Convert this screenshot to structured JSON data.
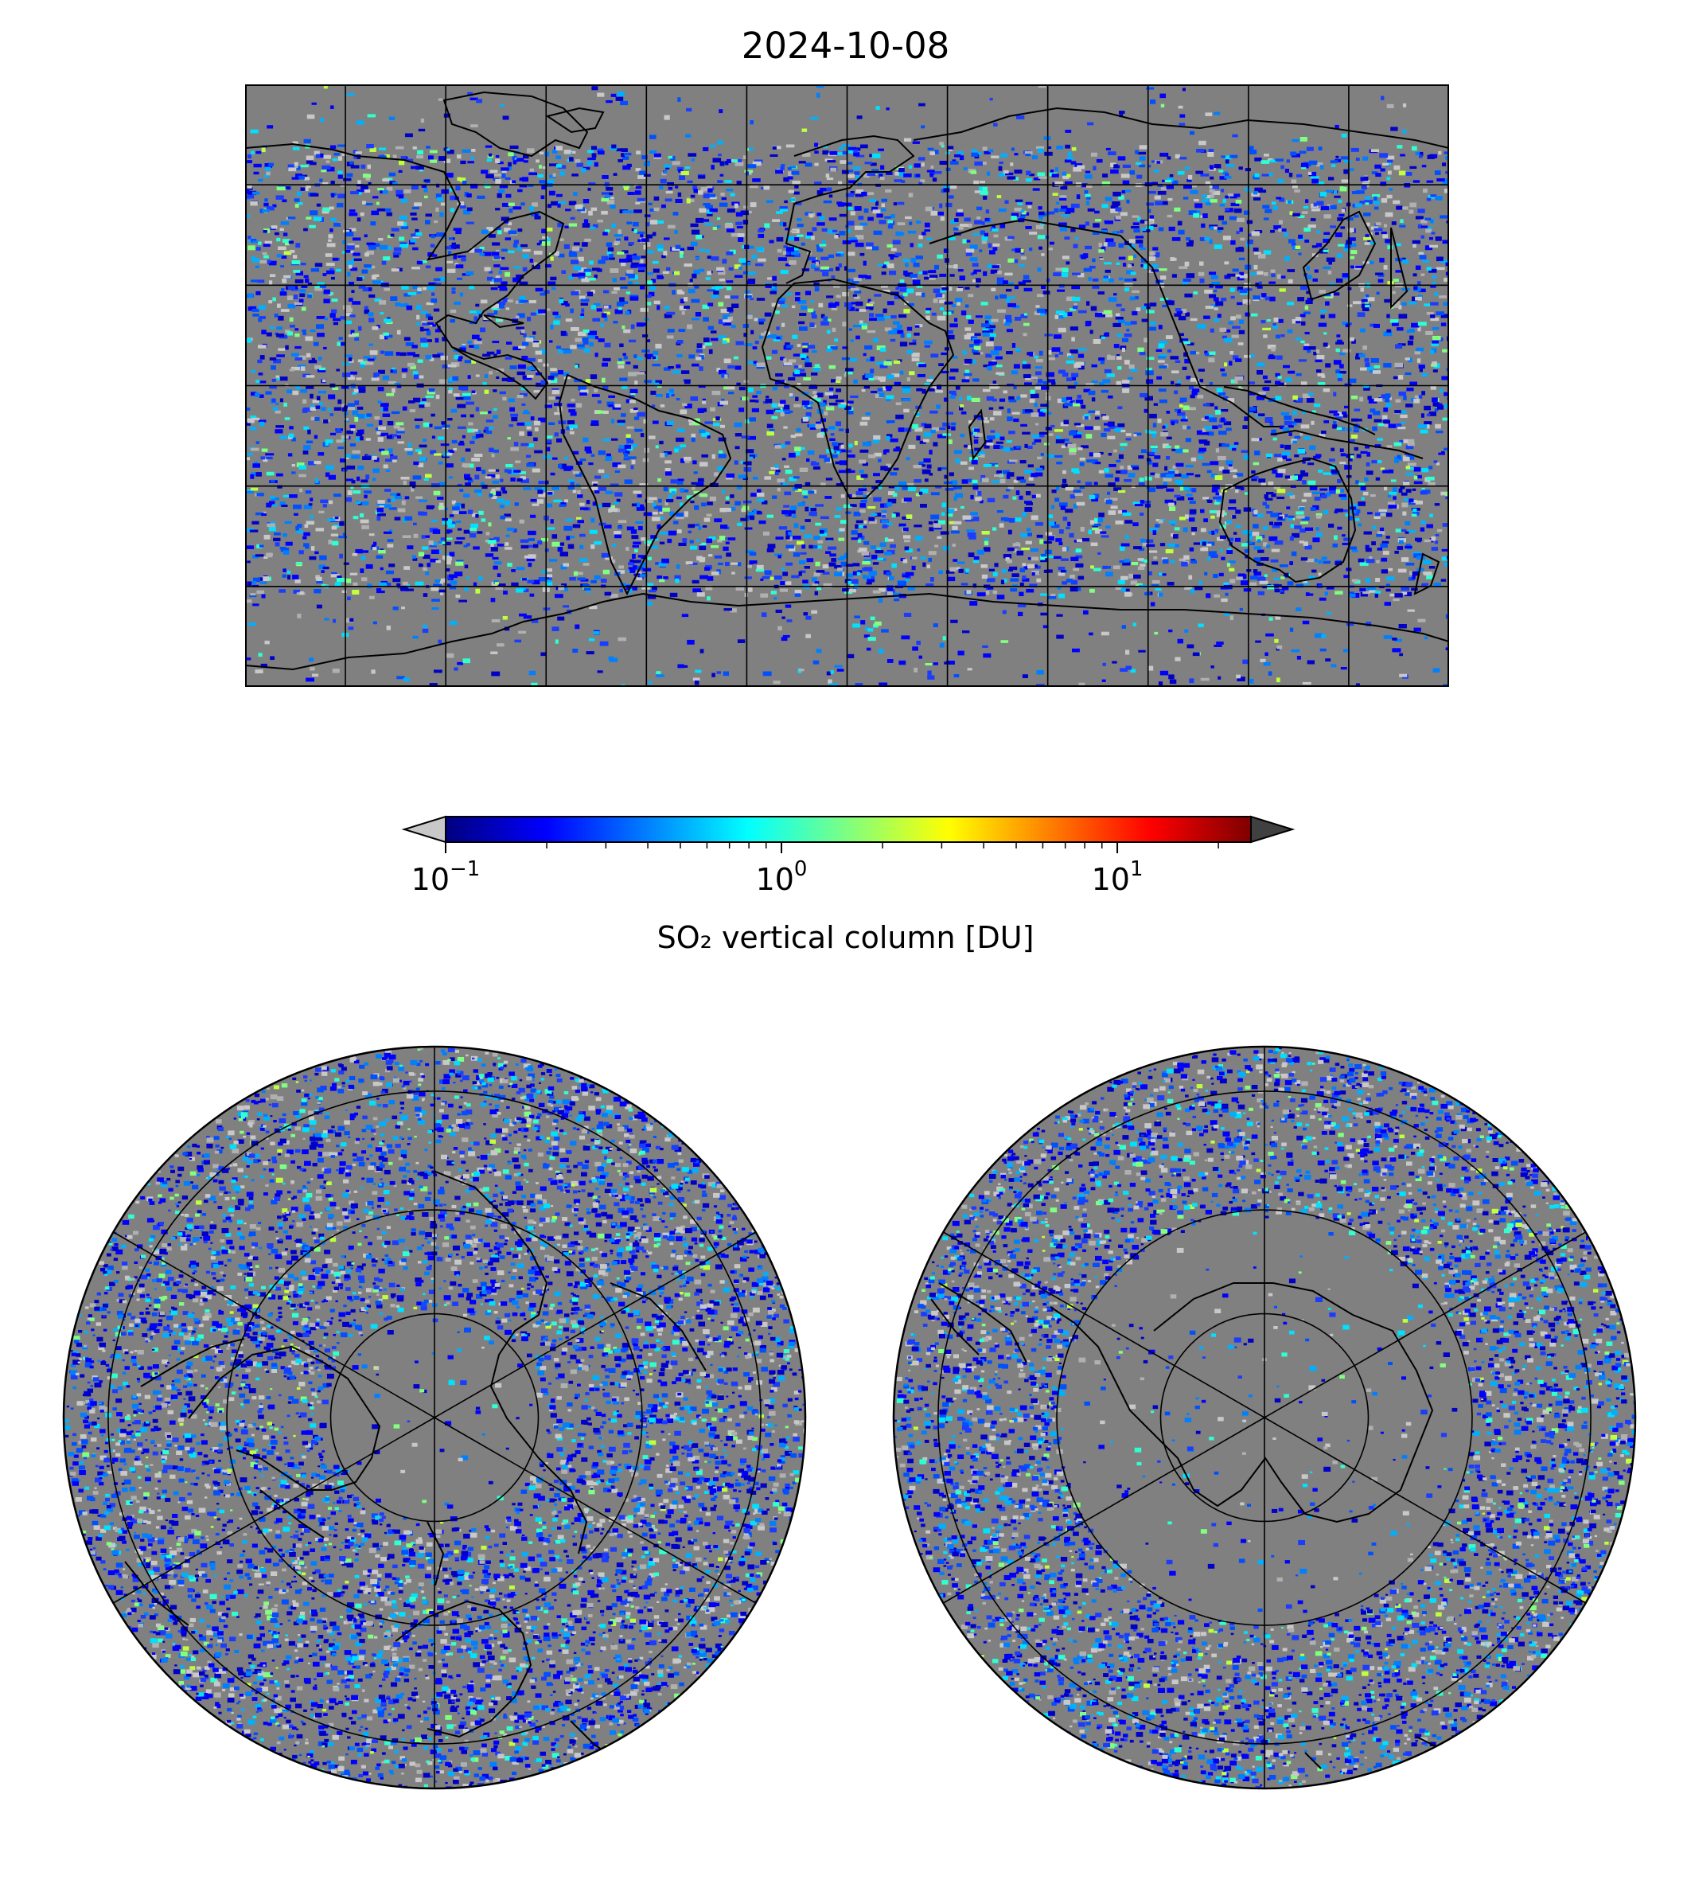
{
  "title": "2024-10-08",
  "colorbar": {
    "label": "SO₂ vertical column [DU]",
    "scale": "log",
    "range": [
      0.1,
      25
    ],
    "extend": "both",
    "under_color": "#c8c8c8",
    "over_color": "#404040",
    "colormap": "jet",
    "ticks": [
      {
        "value": 0.1,
        "base": "10",
        "exp": "−1"
      },
      {
        "value": 1,
        "base": "10",
        "exp": "0"
      },
      {
        "value": 10,
        "base": "10",
        "exp": "1"
      }
    ]
  },
  "maps": [
    {
      "name": "global",
      "projection": "equirectangular",
      "gridlines": true
    },
    {
      "name": "north-polar",
      "projection": "orthographic north pole",
      "gridlines": true
    },
    {
      "name": "south-polar",
      "projection": "orthographic south pole",
      "gridlines": true
    }
  ],
  "colors": {
    "background_no_data": "#808080",
    "coastline": "#000000",
    "gridline": "#000000"
  }
}
